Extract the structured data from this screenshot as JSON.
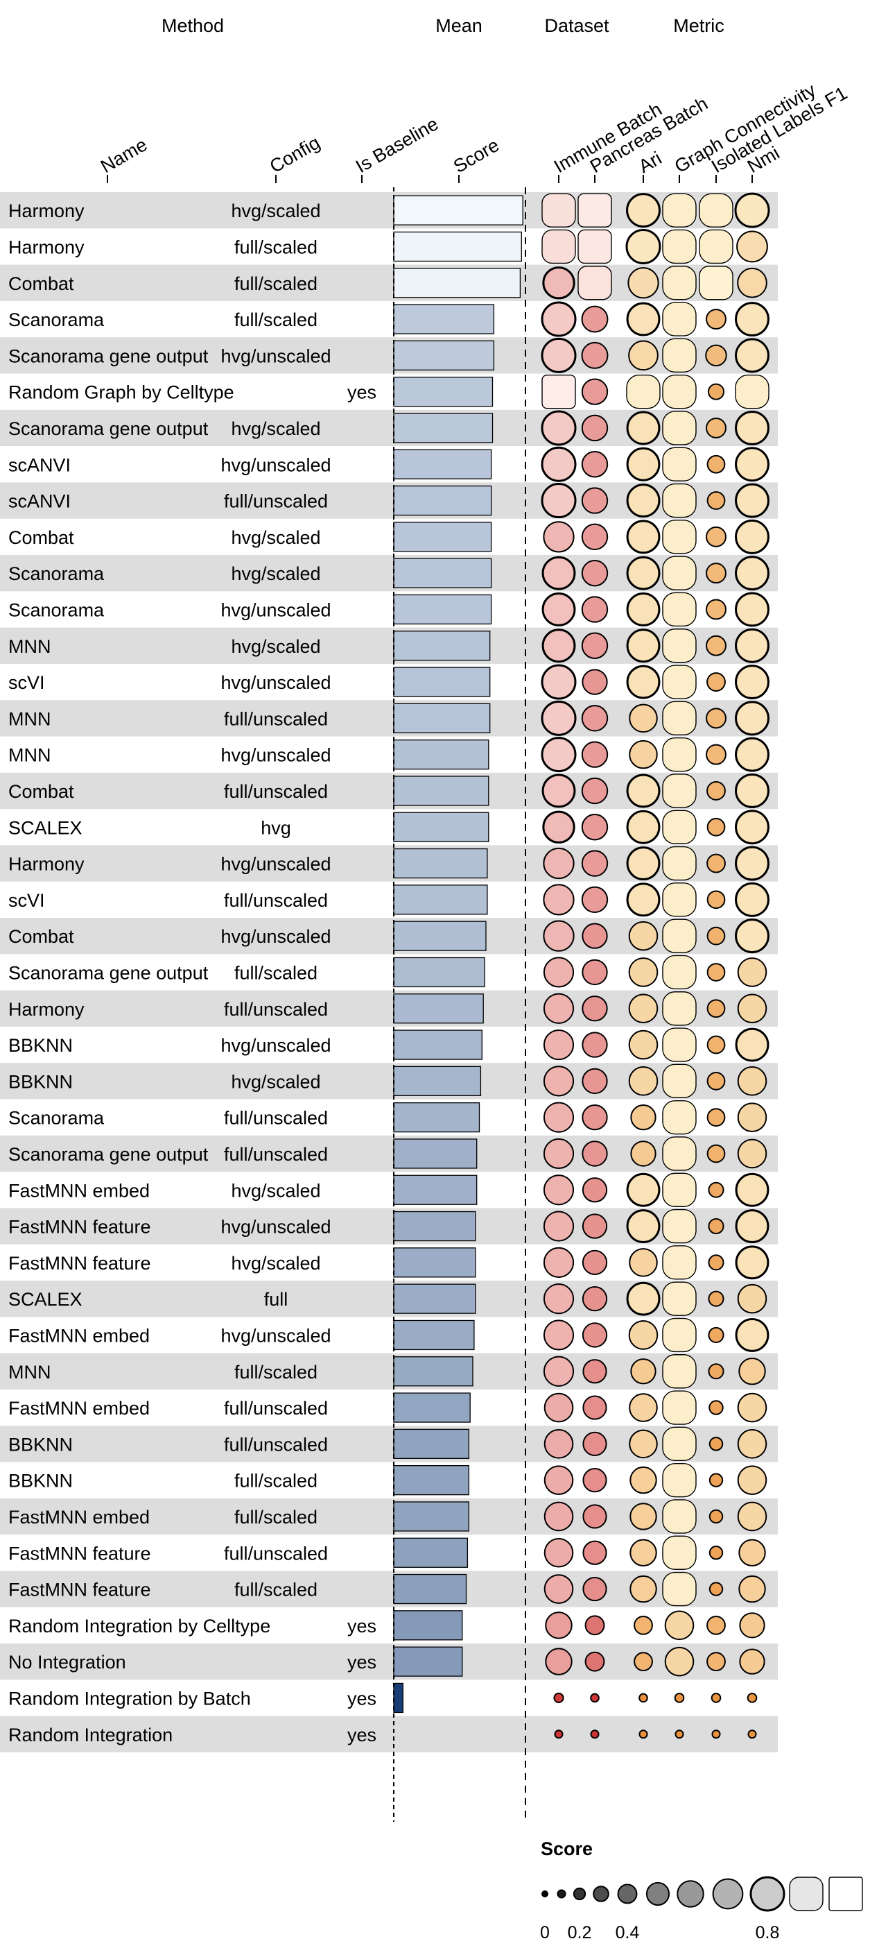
{
  "group_headers": {
    "method": "Method",
    "mean": "Mean",
    "dataset": "Dataset",
    "metric": "Metric"
  },
  "column_headers": {
    "name": "Name",
    "config": "Config",
    "is_baseline": "Is Baseline",
    "score": "Score",
    "immune_batch": "Immune Batch",
    "pancreas_batch": "Pancreas Batch",
    "ari": "Ari",
    "graph_connectivity": "Graph Connectivity",
    "isolated_labels_f1": "Isolated Labels F1",
    "nmi": "Nmi"
  },
  "legend": {
    "title": "Score",
    "tick_labels": [
      "0",
      "0.2",
      "0.4",
      "0.8"
    ]
  },
  "chart_data": {
    "type": "table",
    "score_range": [
      0,
      1
    ],
    "columns": [
      "immune_batch",
      "pancreas_batch",
      "ari",
      "graph_connectivity",
      "isolated_labels_f1",
      "nmi"
    ],
    "colors": {
      "row_stripe": "#dddddd",
      "mean_low": "#08306b",
      "mean_high": "#f7fbff",
      "dataset_low": "#c81e1e",
      "dataset_high": "#fff5f0",
      "metric_low": "#e8862a",
      "metric_high": "#ffffe5",
      "legend_low": "#000000",
      "legend_high": "#ffffff"
    },
    "rows": [
      {
        "name": "Harmony",
        "config": "hvg/scaled",
        "baseline": "",
        "mean": 0.98,
        "values": [
          0.9,
          0.95,
          0.78,
          0.86,
          0.86,
          0.8
        ]
      },
      {
        "name": "Harmony",
        "config": "full/scaled",
        "baseline": "",
        "mean": 0.97,
        "values": [
          0.89,
          0.94,
          0.8,
          0.86,
          0.86,
          0.72
        ]
      },
      {
        "name": "Combat",
        "config": "full/scaled",
        "baseline": "",
        "mean": 0.96,
        "values": [
          0.73,
          0.91,
          0.71,
          0.86,
          0.9,
          0.68
        ]
      },
      {
        "name": "Scanorama",
        "config": "full/scaled",
        "baseline": "",
        "mean": 0.76,
        "values": [
          0.8,
          0.59,
          0.76,
          0.86,
          0.42,
          0.78
        ]
      },
      {
        "name": "Scanorama gene output",
        "config": "hvg/unscaled",
        "baseline": "",
        "mean": 0.76,
        "values": [
          0.8,
          0.59,
          0.68,
          0.86,
          0.45,
          0.78
        ]
      },
      {
        "name": "Random Graph by Celltype",
        "config": "",
        "baseline": "yes",
        "mean": 0.75,
        "values": [
          0.96,
          0.58,
          0.86,
          0.86,
          0.31,
          0.86
        ]
      },
      {
        "name": "Scanorama gene output",
        "config": "hvg/scaled",
        "baseline": "",
        "mean": 0.75,
        "values": [
          0.8,
          0.58,
          0.76,
          0.86,
          0.42,
          0.78
        ]
      },
      {
        "name": "scANVI",
        "config": "hvg/unscaled",
        "baseline": "",
        "mean": 0.74,
        "values": [
          0.8,
          0.58,
          0.76,
          0.86,
          0.36,
          0.78
        ]
      },
      {
        "name": "scANVI",
        "config": "full/unscaled",
        "baseline": "",
        "mean": 0.74,
        "values": [
          0.8,
          0.58,
          0.76,
          0.86,
          0.36,
          0.78
        ]
      },
      {
        "name": "Combat",
        "config": "hvg/scaled",
        "baseline": "",
        "mean": 0.74,
        "values": [
          0.71,
          0.58,
          0.76,
          0.86,
          0.42,
          0.78
        ]
      },
      {
        "name": "Scanorama",
        "config": "hvg/scaled",
        "baseline": "",
        "mean": 0.74,
        "values": [
          0.76,
          0.58,
          0.76,
          0.86,
          0.42,
          0.78
        ]
      },
      {
        "name": "Scanorama",
        "config": "hvg/unscaled",
        "baseline": "",
        "mean": 0.74,
        "values": [
          0.76,
          0.58,
          0.76,
          0.86,
          0.42,
          0.78
        ]
      },
      {
        "name": "MNN",
        "config": "hvg/scaled",
        "baseline": "",
        "mean": 0.73,
        "values": [
          0.76,
          0.58,
          0.76,
          0.86,
          0.42,
          0.78
        ]
      },
      {
        "name": "scVI",
        "config": "hvg/unscaled",
        "baseline": "",
        "mean": 0.73,
        "values": [
          0.8,
          0.56,
          0.76,
          0.86,
          0.38,
          0.78
        ]
      },
      {
        "name": "MNN",
        "config": "full/unscaled",
        "baseline": "",
        "mean": 0.73,
        "values": [
          0.8,
          0.58,
          0.64,
          0.86,
          0.42,
          0.78
        ]
      },
      {
        "name": "MNN",
        "config": "hvg/unscaled",
        "baseline": "",
        "mean": 0.72,
        "values": [
          0.8,
          0.58,
          0.64,
          0.86,
          0.42,
          0.78
        ]
      },
      {
        "name": "Combat",
        "config": "full/unscaled",
        "baseline": "",
        "mean": 0.72,
        "values": [
          0.76,
          0.58,
          0.76,
          0.86,
          0.38,
          0.78
        ]
      },
      {
        "name": "SCALEX",
        "config": "hvg",
        "baseline": "",
        "mean": 0.72,
        "values": [
          0.73,
          0.58,
          0.76,
          0.86,
          0.36,
          0.78
        ]
      },
      {
        "name": "Harmony",
        "config": "hvg/unscaled",
        "baseline": "",
        "mean": 0.71,
        "values": [
          0.71,
          0.58,
          0.76,
          0.86,
          0.38,
          0.78
        ]
      },
      {
        "name": "scVI",
        "config": "full/unscaled",
        "baseline": "",
        "mean": 0.71,
        "values": [
          0.71,
          0.58,
          0.76,
          0.86,
          0.36,
          0.78
        ]
      },
      {
        "name": "Combat",
        "config": "hvg/unscaled",
        "baseline": "",
        "mean": 0.7,
        "values": [
          0.71,
          0.56,
          0.66,
          0.86,
          0.36,
          0.78
        ]
      },
      {
        "name": "Scanorama gene output",
        "config": "full/scaled",
        "baseline": "",
        "mean": 0.69,
        "values": [
          0.69,
          0.56,
          0.66,
          0.86,
          0.36,
          0.66
        ]
      },
      {
        "name": "Harmony",
        "config": "full/unscaled",
        "baseline": "",
        "mean": 0.68,
        "values": [
          0.69,
          0.56,
          0.66,
          0.86,
          0.36,
          0.66
        ]
      },
      {
        "name": "BBKNN",
        "config": "hvg/unscaled",
        "baseline": "",
        "mean": 0.67,
        "values": [
          0.69,
          0.56,
          0.66,
          0.86,
          0.36,
          0.76
        ]
      },
      {
        "name": "BBKNN",
        "config": "hvg/scaled",
        "baseline": "",
        "mean": 0.66,
        "values": [
          0.69,
          0.56,
          0.66,
          0.86,
          0.36,
          0.66
        ]
      },
      {
        "name": "Scanorama",
        "config": "full/unscaled",
        "baseline": "",
        "mean": 0.65,
        "values": [
          0.69,
          0.56,
          0.56,
          0.86,
          0.36,
          0.66
        ]
      },
      {
        "name": "Scanorama gene output",
        "config": "full/unscaled",
        "baseline": "",
        "mean": 0.63,
        "values": [
          0.69,
          0.56,
          0.56,
          0.86,
          0.36,
          0.66
        ]
      },
      {
        "name": "FastMNN embed",
        "config": "hvg/scaled",
        "baseline": "",
        "mean": 0.63,
        "values": [
          0.69,
          0.54,
          0.76,
          0.86,
          0.29,
          0.76
        ]
      },
      {
        "name": "FastMNN feature",
        "config": "hvg/unscaled",
        "baseline": "",
        "mean": 0.62,
        "values": [
          0.69,
          0.54,
          0.76,
          0.86,
          0.29,
          0.76
        ]
      },
      {
        "name": "FastMNN feature",
        "config": "hvg/scaled",
        "baseline": "",
        "mean": 0.62,
        "values": [
          0.69,
          0.54,
          0.64,
          0.86,
          0.29,
          0.76
        ]
      },
      {
        "name": "SCALEX",
        "config": "full",
        "baseline": "",
        "mean": 0.62,
        "values": [
          0.69,
          0.54,
          0.76,
          0.86,
          0.29,
          0.66
        ]
      },
      {
        "name": "FastMNN embed",
        "config": "hvg/unscaled",
        "baseline": "",
        "mean": 0.61,
        "values": [
          0.69,
          0.54,
          0.66,
          0.86,
          0.29,
          0.76
        ]
      },
      {
        "name": "MNN",
        "config": "full/scaled",
        "baseline": "",
        "mean": 0.6,
        "values": [
          0.69,
          0.52,
          0.56,
          0.86,
          0.29,
          0.6
        ]
      },
      {
        "name": "FastMNN embed",
        "config": "full/unscaled",
        "baseline": "",
        "mean": 0.58,
        "values": [
          0.66,
          0.52,
          0.64,
          0.86,
          0.26,
          0.66
        ]
      },
      {
        "name": "BBKNN",
        "config": "full/unscaled",
        "baseline": "",
        "mean": 0.57,
        "values": [
          0.66,
          0.52,
          0.64,
          0.86,
          0.24,
          0.66
        ]
      },
      {
        "name": "BBKNN",
        "config": "full/scaled",
        "baseline": "",
        "mean": 0.57,
        "values": [
          0.66,
          0.52,
          0.6,
          0.86,
          0.24,
          0.66
        ]
      },
      {
        "name": "FastMNN embed",
        "config": "full/scaled",
        "baseline": "",
        "mean": 0.57,
        "values": [
          0.66,
          0.52,
          0.6,
          0.86,
          0.24,
          0.66
        ]
      },
      {
        "name": "FastMNN feature",
        "config": "full/unscaled",
        "baseline": "",
        "mean": 0.56,
        "values": [
          0.66,
          0.52,
          0.6,
          0.86,
          0.24,
          0.6
        ]
      },
      {
        "name": "FastMNN feature",
        "config": "full/scaled",
        "baseline": "",
        "mean": 0.55,
        "values": [
          0.66,
          0.52,
          0.6,
          0.86,
          0.24,
          0.6
        ]
      },
      {
        "name": "Random Integration by Celltype",
        "config": "",
        "baseline": "yes",
        "mean": 0.52,
        "values": [
          0.6,
          0.4,
          0.38,
          0.66,
          0.38,
          0.56
        ]
      },
      {
        "name": "No Integration",
        "config": "",
        "baseline": "yes",
        "mean": 0.52,
        "values": [
          0.6,
          0.4,
          0.38,
          0.66,
          0.38,
          0.56
        ]
      },
      {
        "name": "Random Integration by Batch",
        "config": "",
        "baseline": "yes",
        "mean": 0.07,
        "values": [
          0.14,
          0.11,
          0.11,
          0.13,
          0.13,
          0.13
        ]
      },
      {
        "name": "Random Integration",
        "config": "",
        "baseline": "yes",
        "mean": 0.0,
        "values": [
          0.1,
          0.1,
          0.1,
          0.1,
          0.1,
          0.1
        ]
      }
    ]
  }
}
